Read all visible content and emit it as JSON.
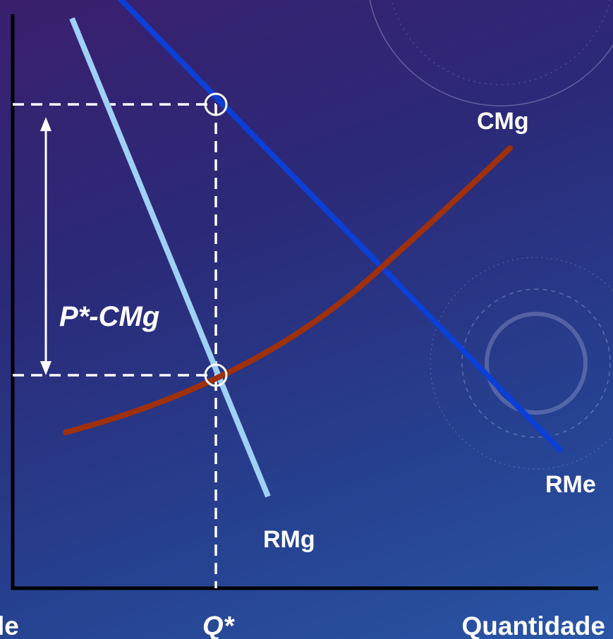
{
  "chart_data": {
    "type": "line",
    "title": "",
    "xlabel": "Quantidade",
    "ylabel": "",
    "y_axis_fragment": "le",
    "grid": false,
    "series": [
      {
        "name": "RMe",
        "color": "#0b3fd6"
      },
      {
        "name": "RMg",
        "color": "#9fd0f5"
      },
      {
        "name": "CMg",
        "color": "#a0300a"
      }
    ],
    "markers": {
      "q_star": "Q*",
      "markup": "P*-CMg"
    },
    "colors": {
      "guides": "#ffffff",
      "axes": "#000000"
    }
  }
}
